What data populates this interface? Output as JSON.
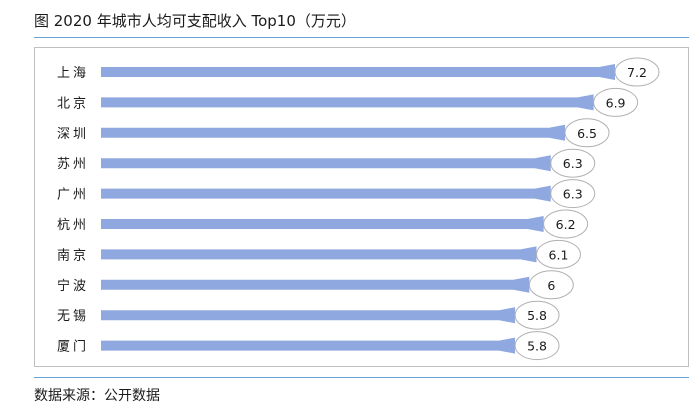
{
  "title": "图 2020 年城市人均可支配收入 Top10（万元）",
  "source": "数据来源：公开数据",
  "colors": {
    "bar": "#8fa8e0",
    "label_border": "#b0b0b0",
    "rule": "#6aa3d6"
  },
  "chart_data": {
    "type": "bar",
    "orientation": "horizontal",
    "title": "图 2020 年城市人均可支配收入 Top10（万元）",
    "xlabel": "",
    "ylabel": "",
    "categories": [
      "上海",
      "北京",
      "深圳",
      "苏州",
      "广州",
      "杭州",
      "南京",
      "宁波",
      "无锡",
      "厦门"
    ],
    "values": [
      7.2,
      6.9,
      6.5,
      6.3,
      6.3,
      6.2,
      6.1,
      6,
      5.8,
      5.8
    ],
    "value_labels": [
      "7.2",
      "6.9",
      "6.5",
      "6.3",
      "6.3",
      "6.2",
      "6.1",
      "6",
      "5.8",
      "5.8"
    ],
    "xlim": [
      0,
      7.2
    ],
    "grid": false,
    "legend": "none"
  }
}
